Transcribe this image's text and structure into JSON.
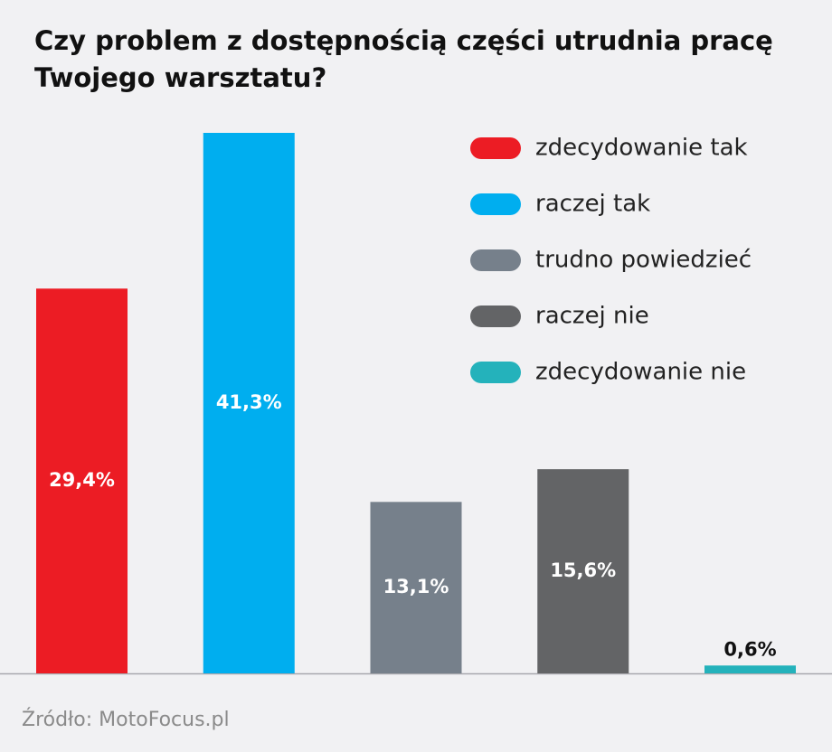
{
  "chart_data": {
    "type": "bar",
    "title": [
      "Czy problem z dostępnością części utrudnia pracę",
      "Twojego warsztatu?"
    ],
    "categories": [
      "zdecydowanie tak",
      "raczej tak",
      "trudno powiedzieć",
      "raczej nie",
      "zdecydowanie nie"
    ],
    "values": [
      29.4,
      41.3,
      13.1,
      15.6,
      0.6
    ],
    "value_labels": [
      "29,4%",
      "41,3%",
      "13,1%",
      "15,6%",
      "0,6%"
    ],
    "colors": [
      "#ec1c24",
      "#00aeef",
      "#76808b",
      "#636466",
      "#24b2bb"
    ],
    "source": "Źródło: MotoFocus.pl"
  }
}
